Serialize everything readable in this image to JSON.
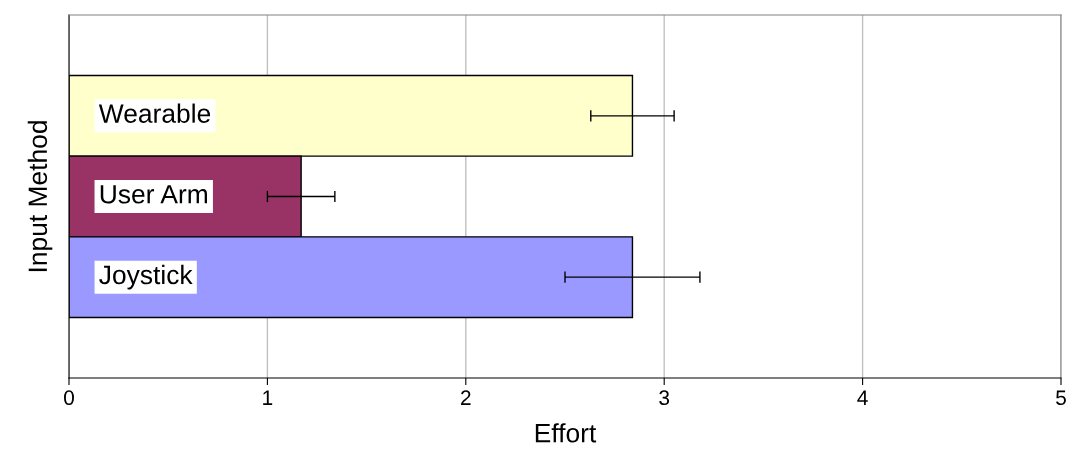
{
  "chart_data": {
    "type": "bar",
    "orientation": "horizontal",
    "xlabel": "Effort",
    "ylabel": "Input Method",
    "categories": [
      "Wearable",
      "User Arm",
      "Joystick"
    ],
    "values": [
      2.84,
      1.17,
      2.84
    ],
    "colors": [
      "#ffffcc",
      "#993366",
      "#9999ff"
    ],
    "errors": [
      [
        2.63,
        3.05
      ],
      [
        1.0,
        1.34
      ],
      [
        2.5,
        3.18
      ]
    ],
    "xlim": [
      0,
      5
    ],
    "xticks": [
      0,
      1,
      2,
      3,
      4,
      5
    ],
    "grid": "x"
  }
}
